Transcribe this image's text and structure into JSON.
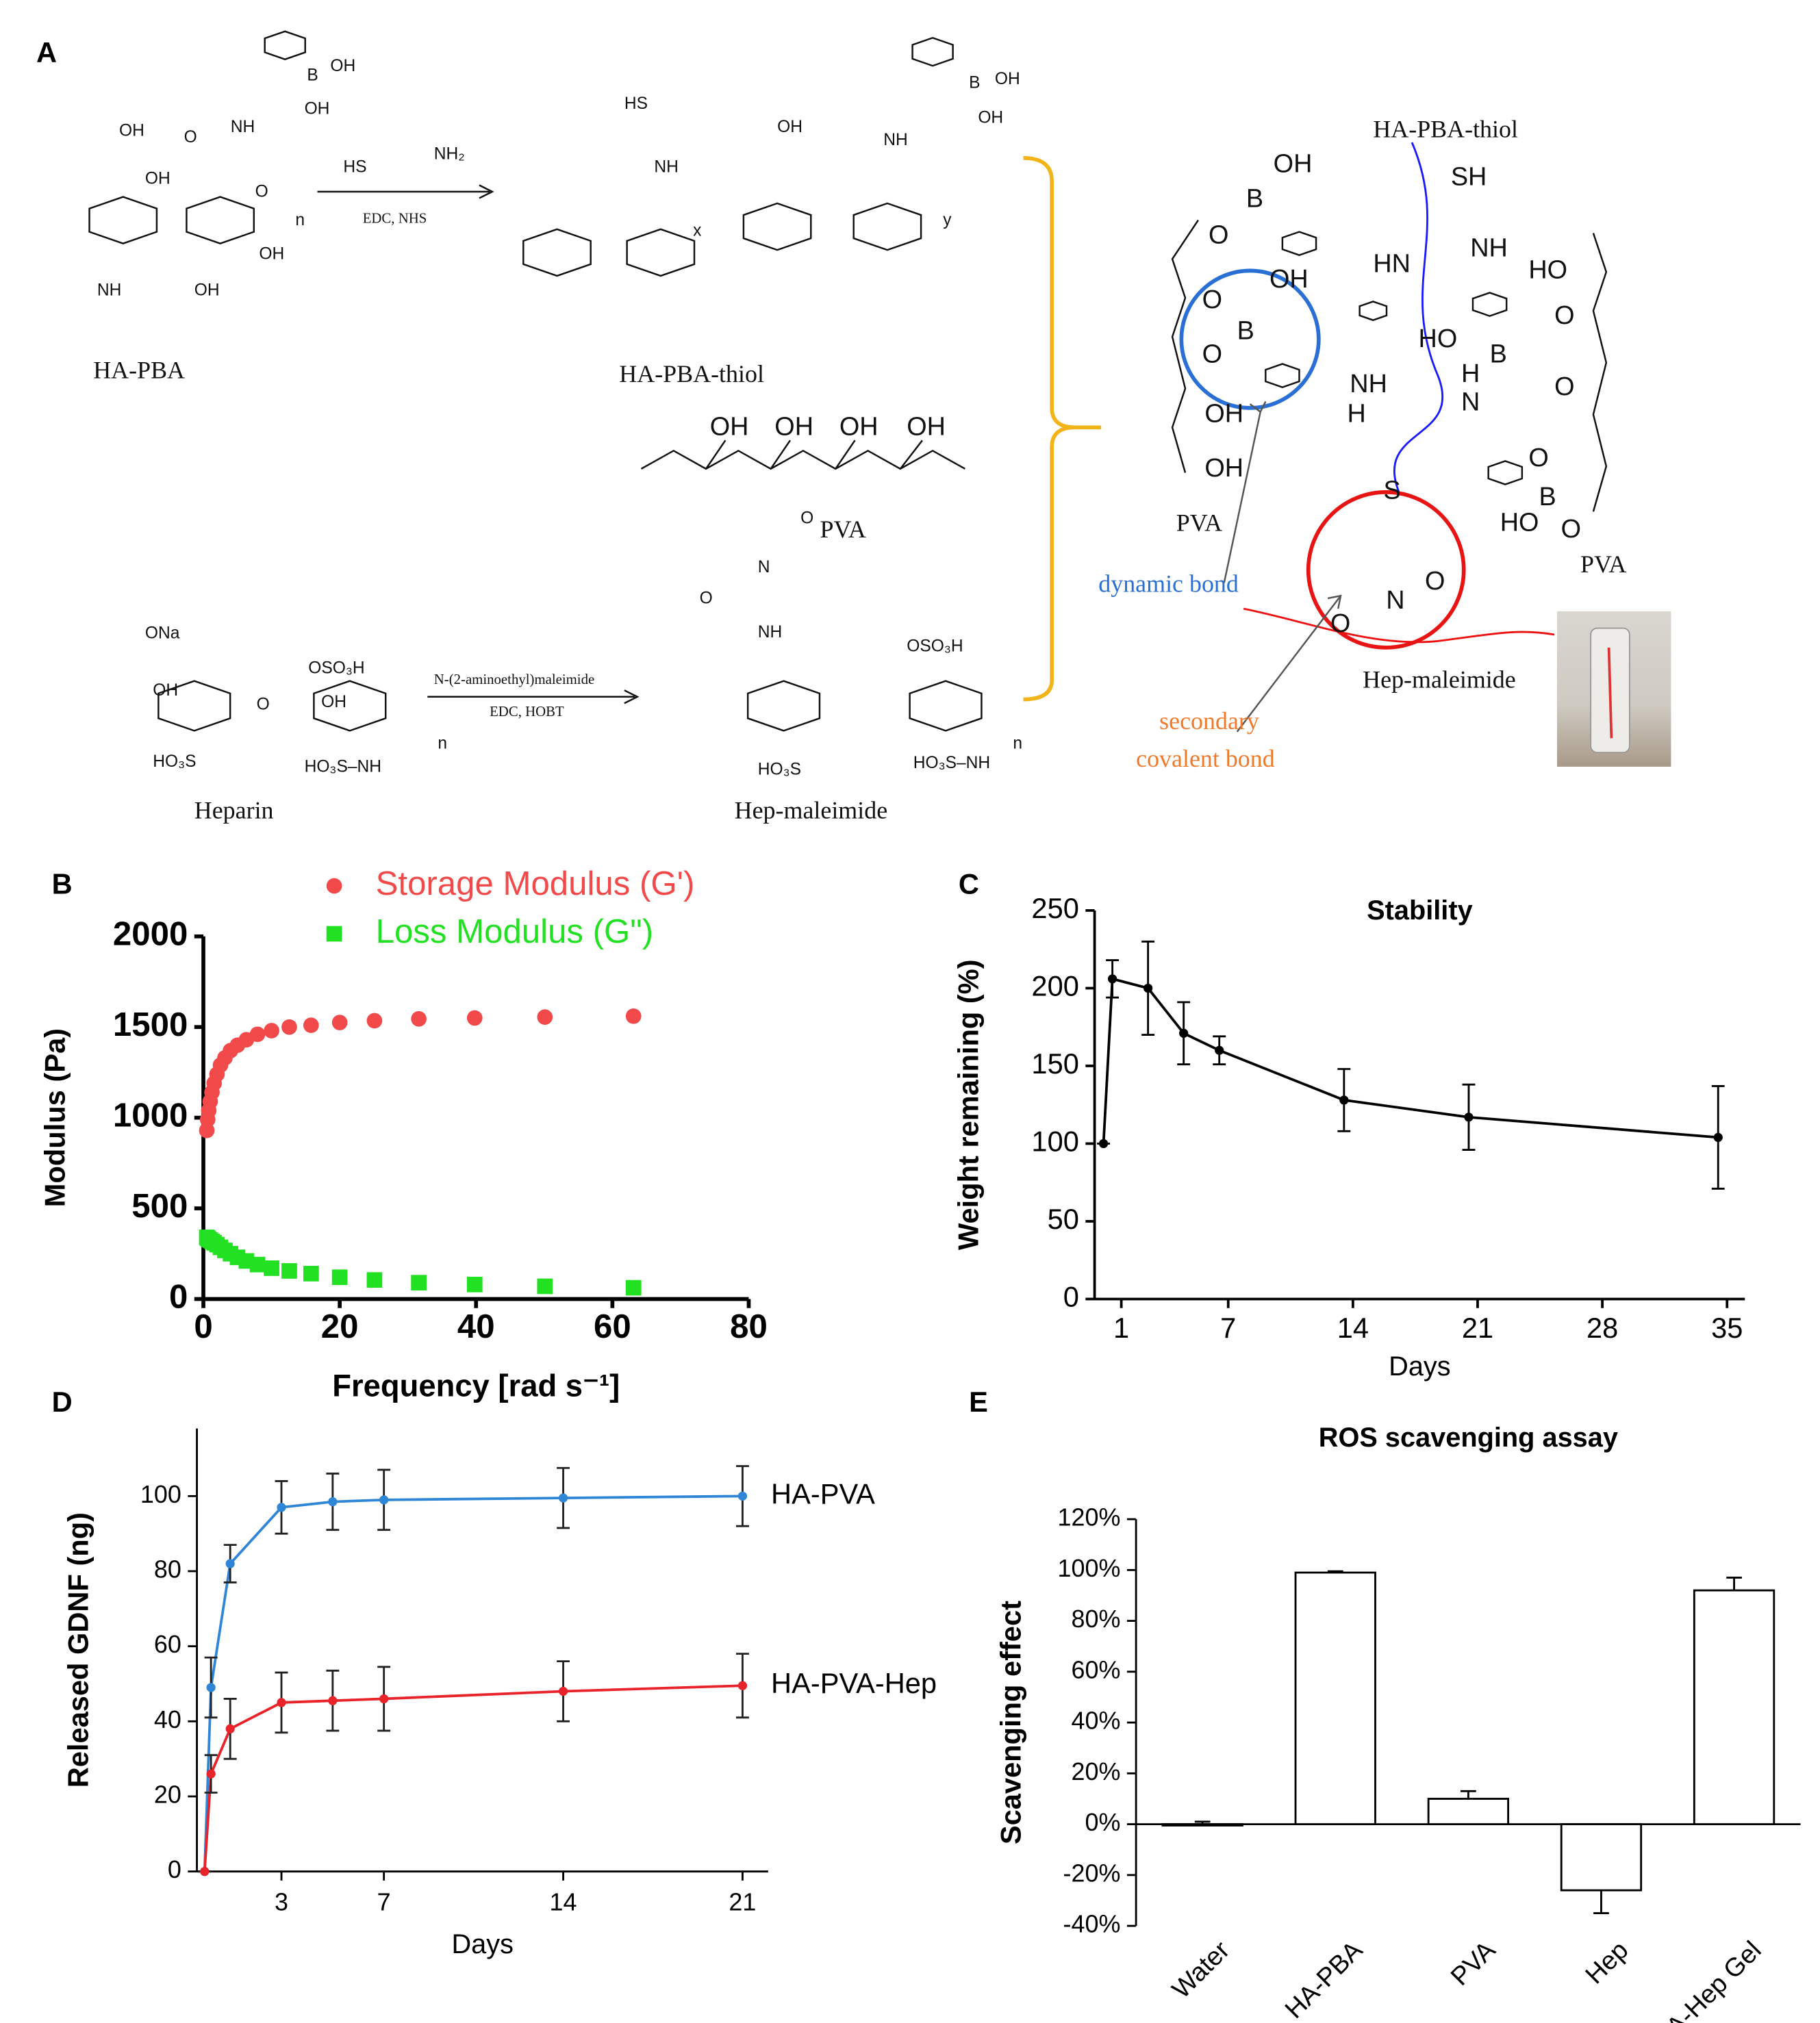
{
  "diagram": {
    "label": "A",
    "compounds": [
      "HA-PBA",
      "HA-PBA-thiol",
      "PVA",
      "Heparin",
      "Hep-maleimide"
    ],
    "reaction_conditions": [
      "EDC, NHS",
      "N-(2-aminoethyl)maleimide",
      "EDC, HOBT"
    ],
    "network_labels": [
      "HA-PBA-thiol",
      "PVA",
      "PVA",
      "Hep-maleimide"
    ],
    "annotations": [
      "dynamic bond",
      "secondary",
      "covalent bond"
    ],
    "atoms": [
      "OH",
      "B",
      "O",
      "SH",
      "NH",
      "HN",
      "O",
      "B",
      "O",
      "OH",
      "HO",
      "HO",
      "B",
      "O",
      "O",
      "NH",
      "H",
      "H",
      "N",
      "OH",
      "OH",
      "S",
      "O",
      "N",
      "O",
      "O",
      "B",
      "O",
      "HO",
      "NH",
      "O",
      "OH",
      "OH",
      "O",
      "B",
      "OH",
      "OH",
      "NH",
      "OH",
      "OH",
      "HS",
      "NH₂",
      "HS",
      "NH",
      "OH",
      "NH",
      "B",
      "OH",
      "OH",
      "ONa",
      "OSO₃H",
      "OH",
      "OH",
      "HO₃S",
      "HO₃S–NH",
      "O",
      "NH",
      "OSO₃H",
      "N",
      "O",
      "O",
      "HO₃S",
      "HO₃S–NH",
      "OH",
      "OH",
      "OH",
      "OH",
      "n",
      "x",
      "y",
      "n",
      "n"
    ]
  },
  "chart_data": [
    {
      "type": "scatter",
      "label": "B",
      "x_label": "Frequency [rad s⁻¹]",
      "y_label": "Modulus (Pa)",
      "xlim": [
        0,
        80
      ],
      "xticks": [
        0,
        20,
        40,
        60,
        80
      ],
      "ylim": [
        0,
        2000
      ],
      "yticks": [
        0,
        500,
        1000,
        1500,
        2000
      ],
      "x": [
        0.5,
        0.63,
        0.79,
        1,
        1.26,
        1.58,
        2,
        2.51,
        3.16,
        3.98,
        5.01,
        6.31,
        7.94,
        10,
        12.6,
        15.8,
        20,
        25.1,
        31.6,
        39.8,
        50.1,
        63.1
      ],
      "series": [
        {
          "name": "Storage Modulus (G')",
          "color": "#f24a4a",
          "marker": "circle",
          "values": [
            930,
            990,
            1040,
            1090,
            1140,
            1190,
            1240,
            1290,
            1330,
            1370,
            1400,
            1430,
            1460,
            1480,
            1500,
            1510,
            1525,
            1535,
            1545,
            1550,
            1555,
            1560
          ]
        },
        {
          "name": "Loss Modulus (G\")",
          "color": "#22e022",
          "marker": "square",
          "values": [
            340,
            335,
            330,
            325,
            318,
            310,
            300,
            285,
            268,
            250,
            230,
            210,
            190,
            170,
            155,
            140,
            120,
            105,
            90,
            80,
            70,
            62
          ]
        }
      ]
    },
    {
      "type": "line",
      "label": "C",
      "title": "Stability",
      "x_label": "Days",
      "y_label": "Weight remaining (%)",
      "xlim": [
        -0.5,
        36
      ],
      "xticks": [
        1,
        7,
        14,
        21,
        28,
        35
      ],
      "ylim": [
        0,
        250
      ],
      "yticks": [
        0,
        50,
        100,
        150,
        200,
        250
      ],
      "x": [
        0,
        0.5,
        2.5,
        4.5,
        6.5,
        13.5,
        20.5,
        34.5
      ],
      "series": [
        {
          "color": "#000000",
          "values": [
            100,
            206,
            200,
            171,
            160,
            128,
            117,
            104
          ],
          "errors": [
            0,
            12,
            30,
            20,
            9,
            20,
            21,
            33
          ]
        }
      ]
    },
    {
      "type": "line",
      "label": "D",
      "x_label": "Days",
      "y_label": "Released  GDNF (ng)",
      "xlim": [
        -0.3,
        22
      ],
      "xticks": [
        3,
        7,
        14,
        21
      ],
      "ylim": [
        0,
        118
      ],
      "yticks": [
        0,
        20,
        40,
        60,
        80,
        100
      ],
      "x": [
        0,
        0.25,
        1,
        3,
        5,
        7,
        14,
        21
      ],
      "series": [
        {
          "name": "HA-PVA",
          "color": "#2f86d6",
          "values": [
            0,
            49,
            82,
            97,
            98.5,
            99,
            99.5,
            100
          ],
          "errors": [
            0,
            8,
            5,
            7,
            7.5,
            8,
            8,
            8
          ]
        },
        {
          "name": "HA-PVA-Hep",
          "color": "#e8232a",
          "values": [
            0,
            26,
            38,
            45,
            45.5,
            46,
            48,
            49.5
          ],
          "errors": [
            0,
            5,
            8,
            8,
            8,
            8.5,
            8,
            8.5
          ]
        }
      ]
    },
    {
      "type": "bar",
      "label": "E",
      "title": "ROS scavenging assay",
      "y_label": "Scavenging effect",
      "ylim": [
        -40,
        120
      ],
      "yticks": [
        {
          "value": -40,
          "label": "-40%"
        },
        {
          "value": -20,
          "label": "-20%"
        },
        {
          "value": 0,
          "label": "0%"
        },
        {
          "value": 20,
          "label": "20%"
        },
        {
          "value": 40,
          "label": "40%"
        },
        {
          "value": 60,
          "label": "60%"
        },
        {
          "value": 80,
          "label": "80%"
        },
        {
          "value": 100,
          "label": "100%"
        },
        {
          "value": 120,
          "label": "120%"
        }
      ],
      "categories": [
        "Water",
        "HA-PBA",
        "PVA",
        "Hep",
        "HA-PVA-Hep Gel"
      ],
      "values": [
        0,
        99,
        10,
        -26,
        92
      ],
      "errors": [
        1,
        0.5,
        3,
        9,
        5
      ],
      "color": "#ffffff"
    }
  ]
}
